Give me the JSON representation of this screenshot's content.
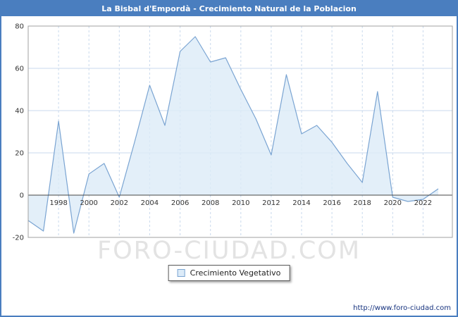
{
  "page": {
    "title": "La Bisbal d'Empordà - Crecimiento Natural de la Poblacion",
    "watermark": "FORO-CIUDAD.COM",
    "footer_url": "http://www.foro-ciudad.com"
  },
  "legend": {
    "items": [
      {
        "label": "Crecimiento Vegetativo"
      }
    ]
  },
  "colors": {
    "title_bg": "#4a7ebf",
    "border": "#4a7ebf",
    "line": "#7aa4d2",
    "fill": "#dcebf8",
    "grid": "#c9d9ec",
    "zero_line": "#444444",
    "frame": "#a0a0a0",
    "tick_text": "#333333",
    "watermark": "#e3e3e3",
    "url_text": "#16327e"
  },
  "chart_data": {
    "type": "area",
    "title": "La Bisbal d'Empordà - Crecimiento Natural de la Poblacion",
    "xlabel": "",
    "ylabel": "",
    "ylim": [
      -20,
      80
    ],
    "yticks": [
      -20,
      0,
      20,
      40,
      60,
      80
    ],
    "xticks": [
      1998,
      2000,
      2002,
      2004,
      2006,
      2008,
      2010,
      2012,
      2014,
      2016,
      2018,
      2020,
      2022
    ],
    "grid": true,
    "legend_position": "bottom",
    "series_name": "Crecimiento Vegetativo",
    "x": [
      1996,
      1997,
      1998,
      1999,
      2000,
      2001,
      2002,
      2003,
      2004,
      2005,
      2006,
      2007,
      2008,
      2009,
      2010,
      2011,
      2012,
      2013,
      2014,
      2015,
      2016,
      2017,
      2018,
      2019,
      2020,
      2021,
      2022,
      2023
    ],
    "values": [
      -12,
      -17,
      35,
      -18,
      10,
      15,
      -1,
      25,
      52,
      33,
      68,
      75,
      63,
      65,
      50,
      36,
      19,
      57,
      29,
      33,
      25,
      15,
      6,
      49,
      -1,
      -3,
      -2,
      3
    ]
  }
}
